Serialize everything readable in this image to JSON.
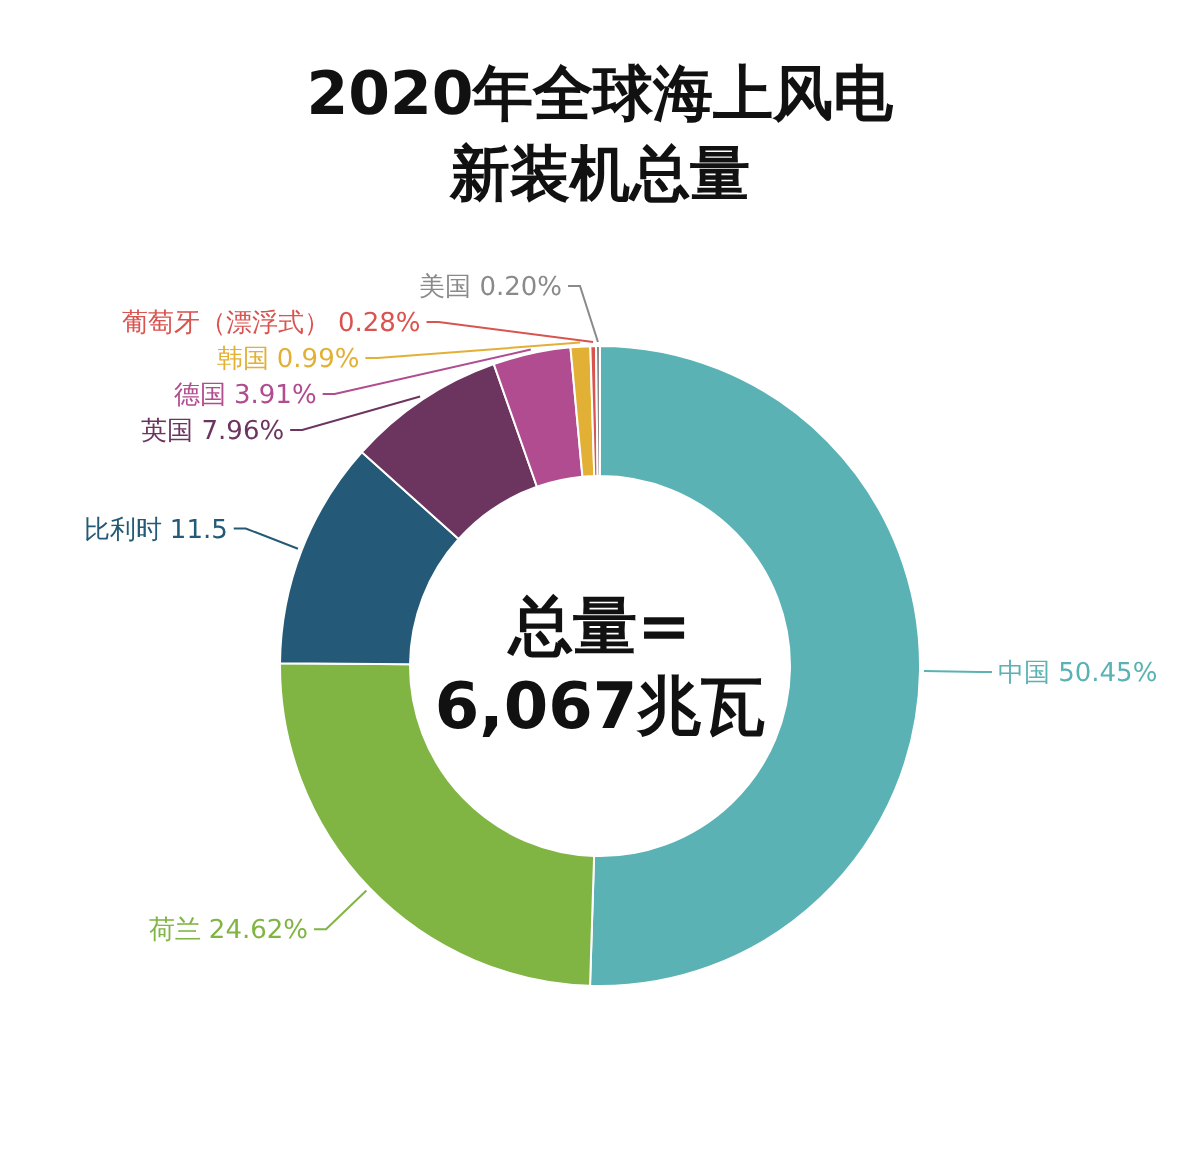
{
  "chart_data": {
    "type": "donut",
    "title": "2020年全球海上风电",
    "subtitle": "新装机总量",
    "categories": [
      "中国",
      "荷兰",
      "比利时",
      "英国",
      "德国",
      "韩国",
      "葡萄牙（漂浮式）",
      "美国"
    ],
    "values": [
      50.45,
      24.62,
      11.5,
      7.96,
      3.91,
      0.99,
      0.28,
      0.2
    ],
    "value_labels": [
      "50.45%",
      "24.62%",
      "11.5",
      "7.96%",
      "3.91%",
      "0.99%",
      "0.28%",
      "0.20%"
    ],
    "colors": [
      "#5ab2b4",
      "#80b443",
      "#245a77",
      "#6c3560",
      "#b04c8f",
      "#e2b035",
      "#d9534f",
      "#8a8a8a"
    ],
    "annotations": [
      "总量=",
      "6,067兆瓦"
    ]
  }
}
